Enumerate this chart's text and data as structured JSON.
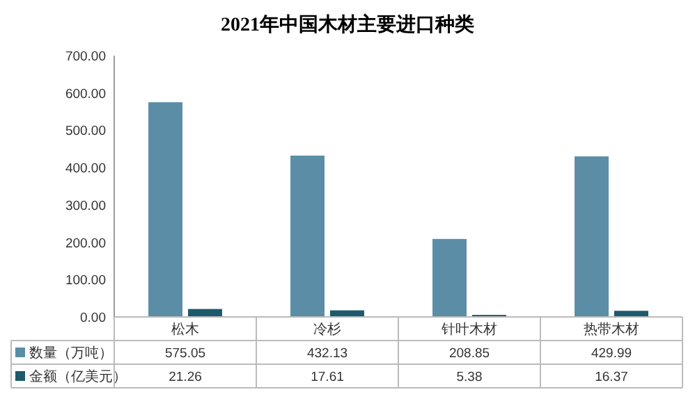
{
  "chart_data": {
    "type": "bar",
    "title": "2021年中国木材主要进口种类",
    "categories": [
      "松木",
      "冷杉",
      "针叶木材",
      "热带木材"
    ],
    "series": [
      {
        "name": "数量（万吨）",
        "color": "#5b8ea6",
        "values": [
          575.05,
          432.13,
          208.85,
          429.99
        ]
      },
      {
        "name": "金额（亿美元）",
        "color": "#1d5a6e",
        "values": [
          21.26,
          17.61,
          5.38,
          16.37
        ]
      }
    ],
    "ylim": [
      0,
      700
    ],
    "yticks": [
      {
        "value": 0,
        "label": "0.00"
      },
      {
        "value": 100,
        "label": "100.00"
      },
      {
        "value": 200,
        "label": "200.00"
      },
      {
        "value": 300,
        "label": "300.00"
      },
      {
        "value": 400,
        "label": "400.00"
      },
      {
        "value": 500,
        "label": "500.00"
      },
      {
        "value": 600,
        "label": "600.00"
      },
      {
        "value": 700,
        "label": "700.00"
      }
    ],
    "data_labels": true,
    "legend": "bottom",
    "grid": false
  }
}
